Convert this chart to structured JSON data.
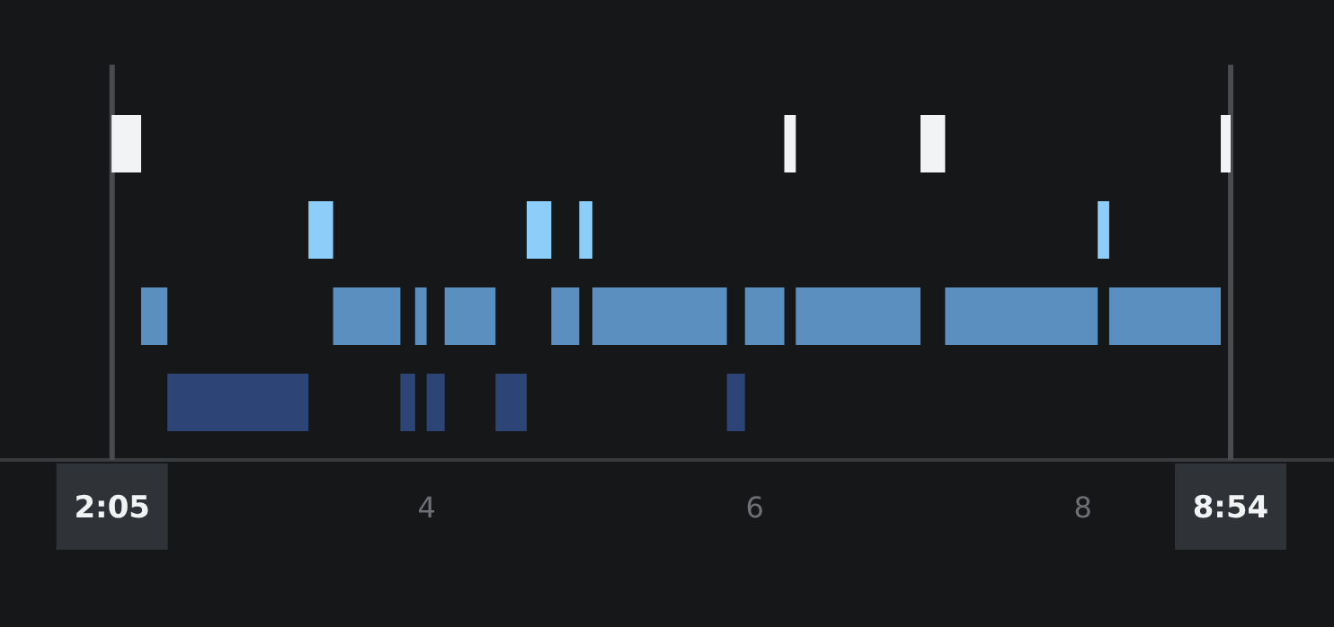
{
  "chart_data": {
    "type": "bar",
    "orientation": "horizontal",
    "tick_labels": "x",
    "categories": [
      null,
      null,
      null,
      null
    ],
    "series": [
      {
        "colors": [
          "#f2f3f5",
          "#8ccdf9",
          "#5a8fc0",
          "#2d4576"
        ],
        "values": [
          0.18,
          0.15,
          0.16,
          0.86
        ],
        "base": [
          2.08,
          3.28,
          2.26,
          2.42
        ]
      },
      {
        "colors": [
          "#f2f3f5",
          "#8ccdf9",
          "#5a8fc0",
          "#2d4576"
        ],
        "values": [
          0.07,
          0.15,
          0.41,
          0.09
        ],
        "base": [
          6.18,
          4.61,
          3.43,
          3.84
        ]
      },
      {
        "colors": [
          "#f2f3f5",
          "#8ccdf9",
          "#5a8fc0",
          "#2d4576"
        ],
        "values": [
          0.15,
          0.08,
          0.07,
          0.11
        ],
        "base": [
          7.01,
          4.93,
          3.93,
          4.0
        ]
      },
      {
        "colors": [
          "#f2f3f5",
          "#8ccdf9",
          "#5a8fc0",
          "#2d4576"
        ],
        "values": [
          0.06,
          0.07,
          0.31,
          0.19
        ],
        "base": [
          8.84,
          8.09,
          4.11,
          4.42
        ]
      },
      {
        "colors": [
          null,
          null,
          "#5a8fc0",
          "#2d4576"
        ],
        "values": [
          null,
          null,
          0.17,
          0.11
        ],
        "base": [
          null,
          null,
          4.76,
          5.83
        ]
      },
      {
        "colors": [
          null,
          null,
          "#5a8fc0",
          null
        ],
        "values": [
          null,
          null,
          0.82,
          null
        ],
        "base": [
          null,
          null,
          5.01,
          null
        ]
      },
      {
        "colors": [
          null,
          null,
          "#5a8fc0",
          null
        ],
        "values": [
          null,
          null,
          0.24,
          null
        ],
        "base": [
          null,
          null,
          5.94,
          null
        ]
      },
      {
        "colors": [
          null,
          null,
          "#5a8fc0",
          null
        ],
        "values": [
          null,
          null,
          0.76,
          null
        ],
        "base": [
          null,
          null,
          6.25,
          null
        ]
      },
      {
        "colors": [
          null,
          null,
          "#5a8fc0",
          null
        ],
        "values": [
          null,
          null,
          0.93,
          null
        ],
        "base": [
          null,
          null,
          7.16,
          null
        ]
      },
      {
        "colors": [
          null,
          null,
          "#5a8fc0",
          null
        ],
        "values": [
          null,
          null,
          0.68,
          null
        ],
        "base": [
          null,
          null,
          8.16,
          null
        ]
      }
    ],
    "xlim": [
      1.4,
      9.53
    ],
    "xticks": [
      {
        "value": 2.0833,
        "label": "2:05"
      },
      4,
      6,
      8,
      {
        "value": 8.9,
        "label": "8:54"
      }
    ],
    "ref_lines": [
      {
        "axis": "x",
        "value": 2.0833,
        "color": "#4a4b4e"
      },
      {
        "axis": "x",
        "value": 8.9,
        "color": "#4a4b4e"
      }
    ]
  }
}
